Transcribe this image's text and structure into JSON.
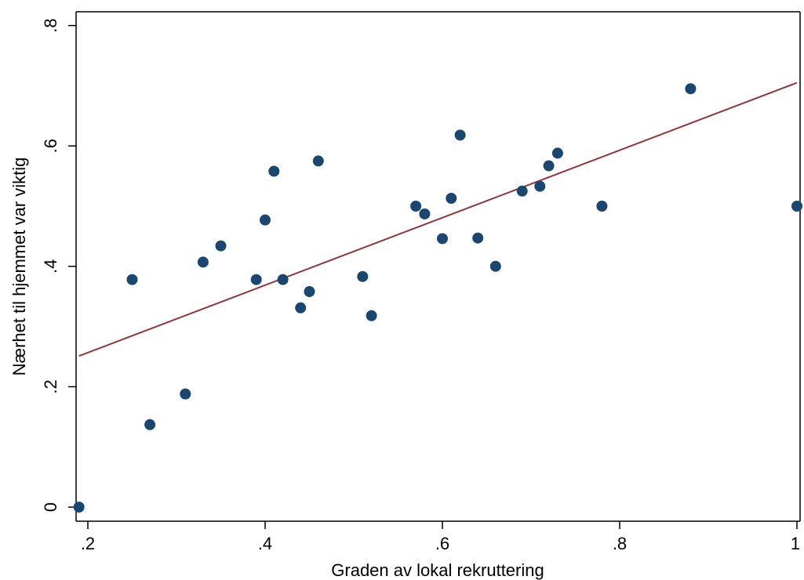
{
  "chart_data": {
    "type": "scatter",
    "xlabel": "Graden av lokal rekruttering",
    "ylabel": "Nærhet til hjemmet var viktig",
    "xlim": [
      0.18,
      1.0
    ],
    "ylim": [
      -0.02,
      0.82
    ],
    "x_ticks": [
      {
        "value": 0.2,
        "label": ".2"
      },
      {
        "value": 0.4,
        "label": ".4"
      },
      {
        "value": 0.6,
        "label": ".6"
      },
      {
        "value": 0.8,
        "label": ".8"
      },
      {
        "value": 1.0,
        "label": "1"
      }
    ],
    "y_ticks": [
      {
        "value": 0.0,
        "label": "0"
      },
      {
        "value": 0.2,
        "label": ".2"
      },
      {
        "value": 0.4,
        "label": ".4"
      },
      {
        "value": 0.6,
        "label": ".6"
      },
      {
        "value": 0.8,
        "label": ".8"
      }
    ],
    "grid": false,
    "legend": "none",
    "points": [
      {
        "x": 0.19,
        "y": 0.0
      },
      {
        "x": 0.25,
        "y": 0.378
      },
      {
        "x": 0.27,
        "y": 0.137
      },
      {
        "x": 0.31,
        "y": 0.188
      },
      {
        "x": 0.33,
        "y": 0.407
      },
      {
        "x": 0.35,
        "y": 0.434
      },
      {
        "x": 0.39,
        "y": 0.378
      },
      {
        "x": 0.4,
        "y": 0.477
      },
      {
        "x": 0.41,
        "y": 0.558
      },
      {
        "x": 0.42,
        "y": 0.378
      },
      {
        "x": 0.44,
        "y": 0.331
      },
      {
        "x": 0.45,
        "y": 0.358
      },
      {
        "x": 0.46,
        "y": 0.575
      },
      {
        "x": 0.51,
        "y": 0.383
      },
      {
        "x": 0.52,
        "y": 0.318
      },
      {
        "x": 0.57,
        "y": 0.5
      },
      {
        "x": 0.58,
        "y": 0.487
      },
      {
        "x": 0.6,
        "y": 0.446
      },
      {
        "x": 0.61,
        "y": 0.513
      },
      {
        "x": 0.62,
        "y": 0.618
      },
      {
        "x": 0.64,
        "y": 0.447
      },
      {
        "x": 0.66,
        "y": 0.4
      },
      {
        "x": 0.69,
        "y": 0.525
      },
      {
        "x": 0.71,
        "y": 0.533
      },
      {
        "x": 0.72,
        "y": 0.567
      },
      {
        "x": 0.73,
        "y": 0.588
      },
      {
        "x": 0.78,
        "y": 0.5
      },
      {
        "x": 0.88,
        "y": 0.695
      },
      {
        "x": 1.0,
        "y": 0.5
      }
    ],
    "fit_line": {
      "x": [
        0.19,
        1.0
      ],
      "y": [
        0.251,
        0.705
      ]
    },
    "colors": {
      "marker": "#1a476f",
      "fit_line": "#90353b",
      "frame": "#000000"
    }
  }
}
